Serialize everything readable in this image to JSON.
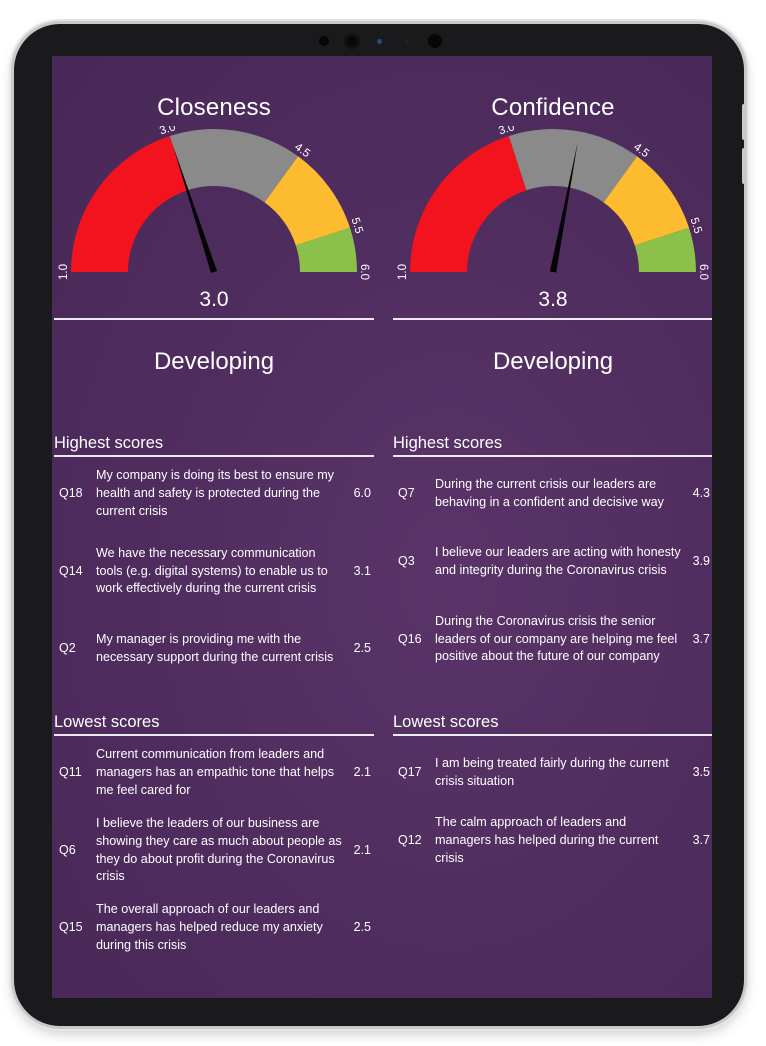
{
  "gauges": [
    {
      "title": "Closeness",
      "value": 3.0,
      "value_label": "3.0",
      "status": "Developing",
      "scale": {
        "min": 1.0,
        "max": 6.0
      },
      "ticks": [
        {
          "v": 1.0,
          "label": "1.0"
        },
        {
          "v": 3.0,
          "label": "3.0"
        },
        {
          "v": 4.5,
          "label": "4.5"
        },
        {
          "v": 5.5,
          "label": "5.5"
        },
        {
          "v": 6.0,
          "label": "6.0"
        }
      ],
      "bands": [
        {
          "from": 1.0,
          "to": 3.0,
          "color": "#f2131f"
        },
        {
          "from": 3.0,
          "to": 4.5,
          "color": "#8a8a8a"
        },
        {
          "from": 4.5,
          "to": 5.5,
          "color": "#fdbb30"
        },
        {
          "from": 5.5,
          "to": 6.0,
          "color": "#8bc14a"
        }
      ],
      "highest_title": "Highest scores",
      "highest": [
        {
          "q": "Q18",
          "text": "My company is doing its best to ensure my health and safety is protected during the current crisis",
          "value": "6.0"
        },
        {
          "q": "Q14",
          "text": "We have the necessary communication tools (e.g. digital systems) to enable us to work effectively during the current crisis",
          "value": "3.1"
        },
        {
          "q": "Q2",
          "text": "My manager is providing me with the necessary support during the current crisis",
          "value": "2.5"
        }
      ],
      "lowest_title": "Lowest scores",
      "lowest": [
        {
          "q": "Q11",
          "text": "Current communication from leaders and managers has an empathic tone that helps me feel cared for",
          "value": "2.1"
        },
        {
          "q": "Q6",
          "text": "I believe the leaders of our business are showing they care as much about people as they do about profit during the Coronavirus crisis",
          "value": "2.1"
        },
        {
          "q": "Q15",
          "text": "The overall approach of our leaders and managers has helped reduce my anxiety during this crisis",
          "value": "2.5"
        }
      ]
    },
    {
      "title": "Confidence",
      "value": 3.8,
      "value_label": "3.8",
      "status": "Developing",
      "scale": {
        "min": 1.0,
        "max": 6.0
      },
      "ticks": [
        {
          "v": 1.0,
          "label": "1.0"
        },
        {
          "v": 3.0,
          "label": "3.0"
        },
        {
          "v": 4.5,
          "label": "4.5"
        },
        {
          "v": 5.5,
          "label": "5.5"
        },
        {
          "v": 6.0,
          "label": "6.0"
        }
      ],
      "bands": [
        {
          "from": 1.0,
          "to": 3.0,
          "color": "#f2131f"
        },
        {
          "from": 3.0,
          "to": 4.5,
          "color": "#8a8a8a"
        },
        {
          "from": 4.5,
          "to": 5.5,
          "color": "#fdbb30"
        },
        {
          "from": 5.5,
          "to": 6.0,
          "color": "#8bc14a"
        }
      ],
      "highest_title": "Highest scores",
      "highest": [
        {
          "q": "Q7",
          "text": "During the current crisis our leaders are behaving in a confident and decisive way",
          "value": "4.3"
        },
        {
          "q": "Q3",
          "text": "I believe our leaders are acting with honesty and integrity during the Coronavirus crisis",
          "value": "3.9"
        },
        {
          "q": "Q16",
          "text": "During the Coronavirus crisis the senior leaders of our company are helping me feel positive about the future of our company",
          "value": "3.7"
        }
      ],
      "lowest_title": "Lowest scores",
      "lowest": [
        {
          "q": "Q17",
          "text": "I am being treated fairly during the current crisis situation",
          "value": "3.5"
        },
        {
          "q": "Q12",
          "text": "The calm approach of leaders and managers has helped during the current crisis",
          "value": "3.7"
        }
      ]
    }
  ]
}
